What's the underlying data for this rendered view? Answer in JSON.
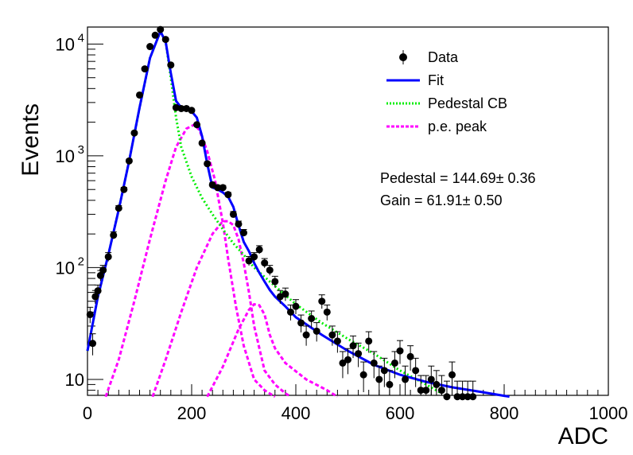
{
  "chart_data": {
    "type": "scatter",
    "xlabel": "ADC",
    "ylabel": "Events",
    "xlim": [
      0,
      1000
    ],
    "ylim": [
      7,
      14000
    ],
    "yscale": "log",
    "x_ticks": [
      "0",
      "200",
      "400",
      "600",
      "800",
      "1000"
    ],
    "y_ticks": [
      {
        "value": 10,
        "base": "10",
        "exp": ""
      },
      {
        "value": 100,
        "base": "10",
        "exp": "2"
      },
      {
        "value": 1000,
        "base": "10",
        "exp": "3"
      },
      {
        "value": 10000,
        "base": "10",
        "exp": "4"
      }
    ],
    "legend_position": "top-right",
    "legend": [
      {
        "key": "data",
        "label": "Data"
      },
      {
        "key": "fit",
        "label": "Fit"
      },
      {
        "key": "pedestal",
        "label": "Pedestal CB"
      },
      {
        "key": "pe",
        "label": "p.e. peak"
      }
    ],
    "annotations": [
      "Pedestal = 144.69± 0.36",
      "Gain = 61.91± 0.50"
    ],
    "colors": {
      "data": "#000000",
      "fit": "#0000ff",
      "pedestal": "#00ee00",
      "pe": "#ff00ff"
    },
    "data": {
      "name": "Data",
      "x": [
        5,
        10,
        15,
        20,
        25,
        30,
        40,
        50,
        60,
        70,
        80,
        90,
        100,
        110,
        120,
        130,
        140,
        150,
        160,
        170,
        180,
        190,
        200,
        210,
        220,
        230,
        240,
        250,
        260,
        270,
        280,
        290,
        300,
        310,
        320,
        330,
        340,
        350,
        360,
        370,
        380,
        390,
        400,
        410,
        420,
        430,
        440,
        450,
        460,
        470,
        480,
        490,
        500,
        510,
        520,
        530,
        540,
        550,
        560,
        570,
        580,
        590,
        600,
        610,
        620,
        630,
        640,
        650,
        660,
        670,
        680,
        690,
        700,
        710,
        720,
        730,
        740
      ],
      "y": [
        38,
        21,
        55,
        62,
        85,
        95,
        125,
        195,
        340,
        500,
        900,
        1600,
        3500,
        6000,
        9500,
        12000,
        13500,
        11000,
        6500,
        2700,
        2650,
        2650,
        2550,
        1900,
        1300,
        850,
        550,
        520,
        520,
        450,
        300,
        245,
        205,
        115,
        125,
        145,
        110,
        95,
        75,
        55,
        58,
        40,
        45,
        32,
        25,
        35,
        27,
        50,
        40,
        25,
        22,
        14,
        15,
        20,
        17,
        11,
        22,
        14,
        10,
        12,
        9,
        14,
        18,
        10,
        16,
        12,
        8,
        8,
        10,
        9,
        8,
        7,
        11,
        7,
        7,
        7,
        7
      ]
    },
    "fit": {
      "name": "Fit",
      "x": [
        0,
        20,
        40,
        60,
        80,
        100,
        120,
        140,
        150,
        160,
        170,
        180,
        200,
        210,
        220,
        230,
        240,
        250,
        260,
        270,
        280,
        290,
        300,
        310,
        320,
        330,
        340,
        350,
        360,
        380,
        400,
        450,
        500,
        550,
        600,
        650,
        700,
        750,
        810
      ],
      "y": [
        18,
        55,
        130,
        330,
        900,
        2700,
        7500,
        13000,
        10500,
        5500,
        3100,
        2700,
        2500,
        2200,
        1500,
        850,
        520,
        500,
        470,
        430,
        350,
        240,
        170,
        140,
        110,
        90,
        75,
        63,
        55,
        45,
        36,
        25,
        18,
        13.5,
        11,
        9.5,
        8.5,
        7.8,
        7
      ]
    },
    "pedestal_cb": {
      "name": "Pedestal CB",
      "x": [
        0,
        20,
        40,
        60,
        80,
        100,
        120,
        140,
        150,
        160,
        170,
        180,
        200,
        220,
        240,
        260,
        280,
        300,
        320,
        350,
        400,
        450,
        500,
        550,
        600,
        650,
        680
      ],
      "y": [
        18,
        55,
        130,
        330,
        900,
        2700,
        7500,
        13000,
        10500,
        5000,
        2200,
        1200,
        650,
        420,
        300,
        220,
        165,
        130,
        100,
        75,
        47,
        32,
        23,
        17,
        12,
        9,
        7.5
      ]
    },
    "pe_peaks": [
      {
        "name": "p.e. peak",
        "x": [
          35,
          60,
          90,
          120,
          150,
          170,
          190,
          205,
          215,
          230,
          245,
          260,
          270,
          285,
          300,
          320,
          340,
          360
        ],
        "y": [
          7,
          15,
          50,
          180,
          600,
          1200,
          1750,
          1900,
          1700,
          1100,
          600,
          250,
          120,
          45,
          20,
          10,
          8,
          7
        ]
      },
      {
        "name": "p.e. peak",
        "x": [
          125,
          150,
          180,
          210,
          240,
          260,
          270,
          280,
          290,
          300,
          310,
          320,
          340,
          360,
          380,
          390
        ],
        "y": [
          7,
          15,
          40,
          100,
          200,
          260,
          260,
          240,
          180,
          110,
          60,
          30,
          12,
          9,
          7.5,
          7
        ]
      },
      {
        "name": "p.e. peak",
        "x": [
          230,
          260,
          290,
          310,
          320,
          330,
          340,
          350,
          360,
          380,
          420,
          460,
          480
        ],
        "y": [
          7,
          13,
          28,
          42,
          47,
          46,
          38,
          25,
          19,
          14,
          10,
          8,
          7
        ]
      }
    ]
  }
}
